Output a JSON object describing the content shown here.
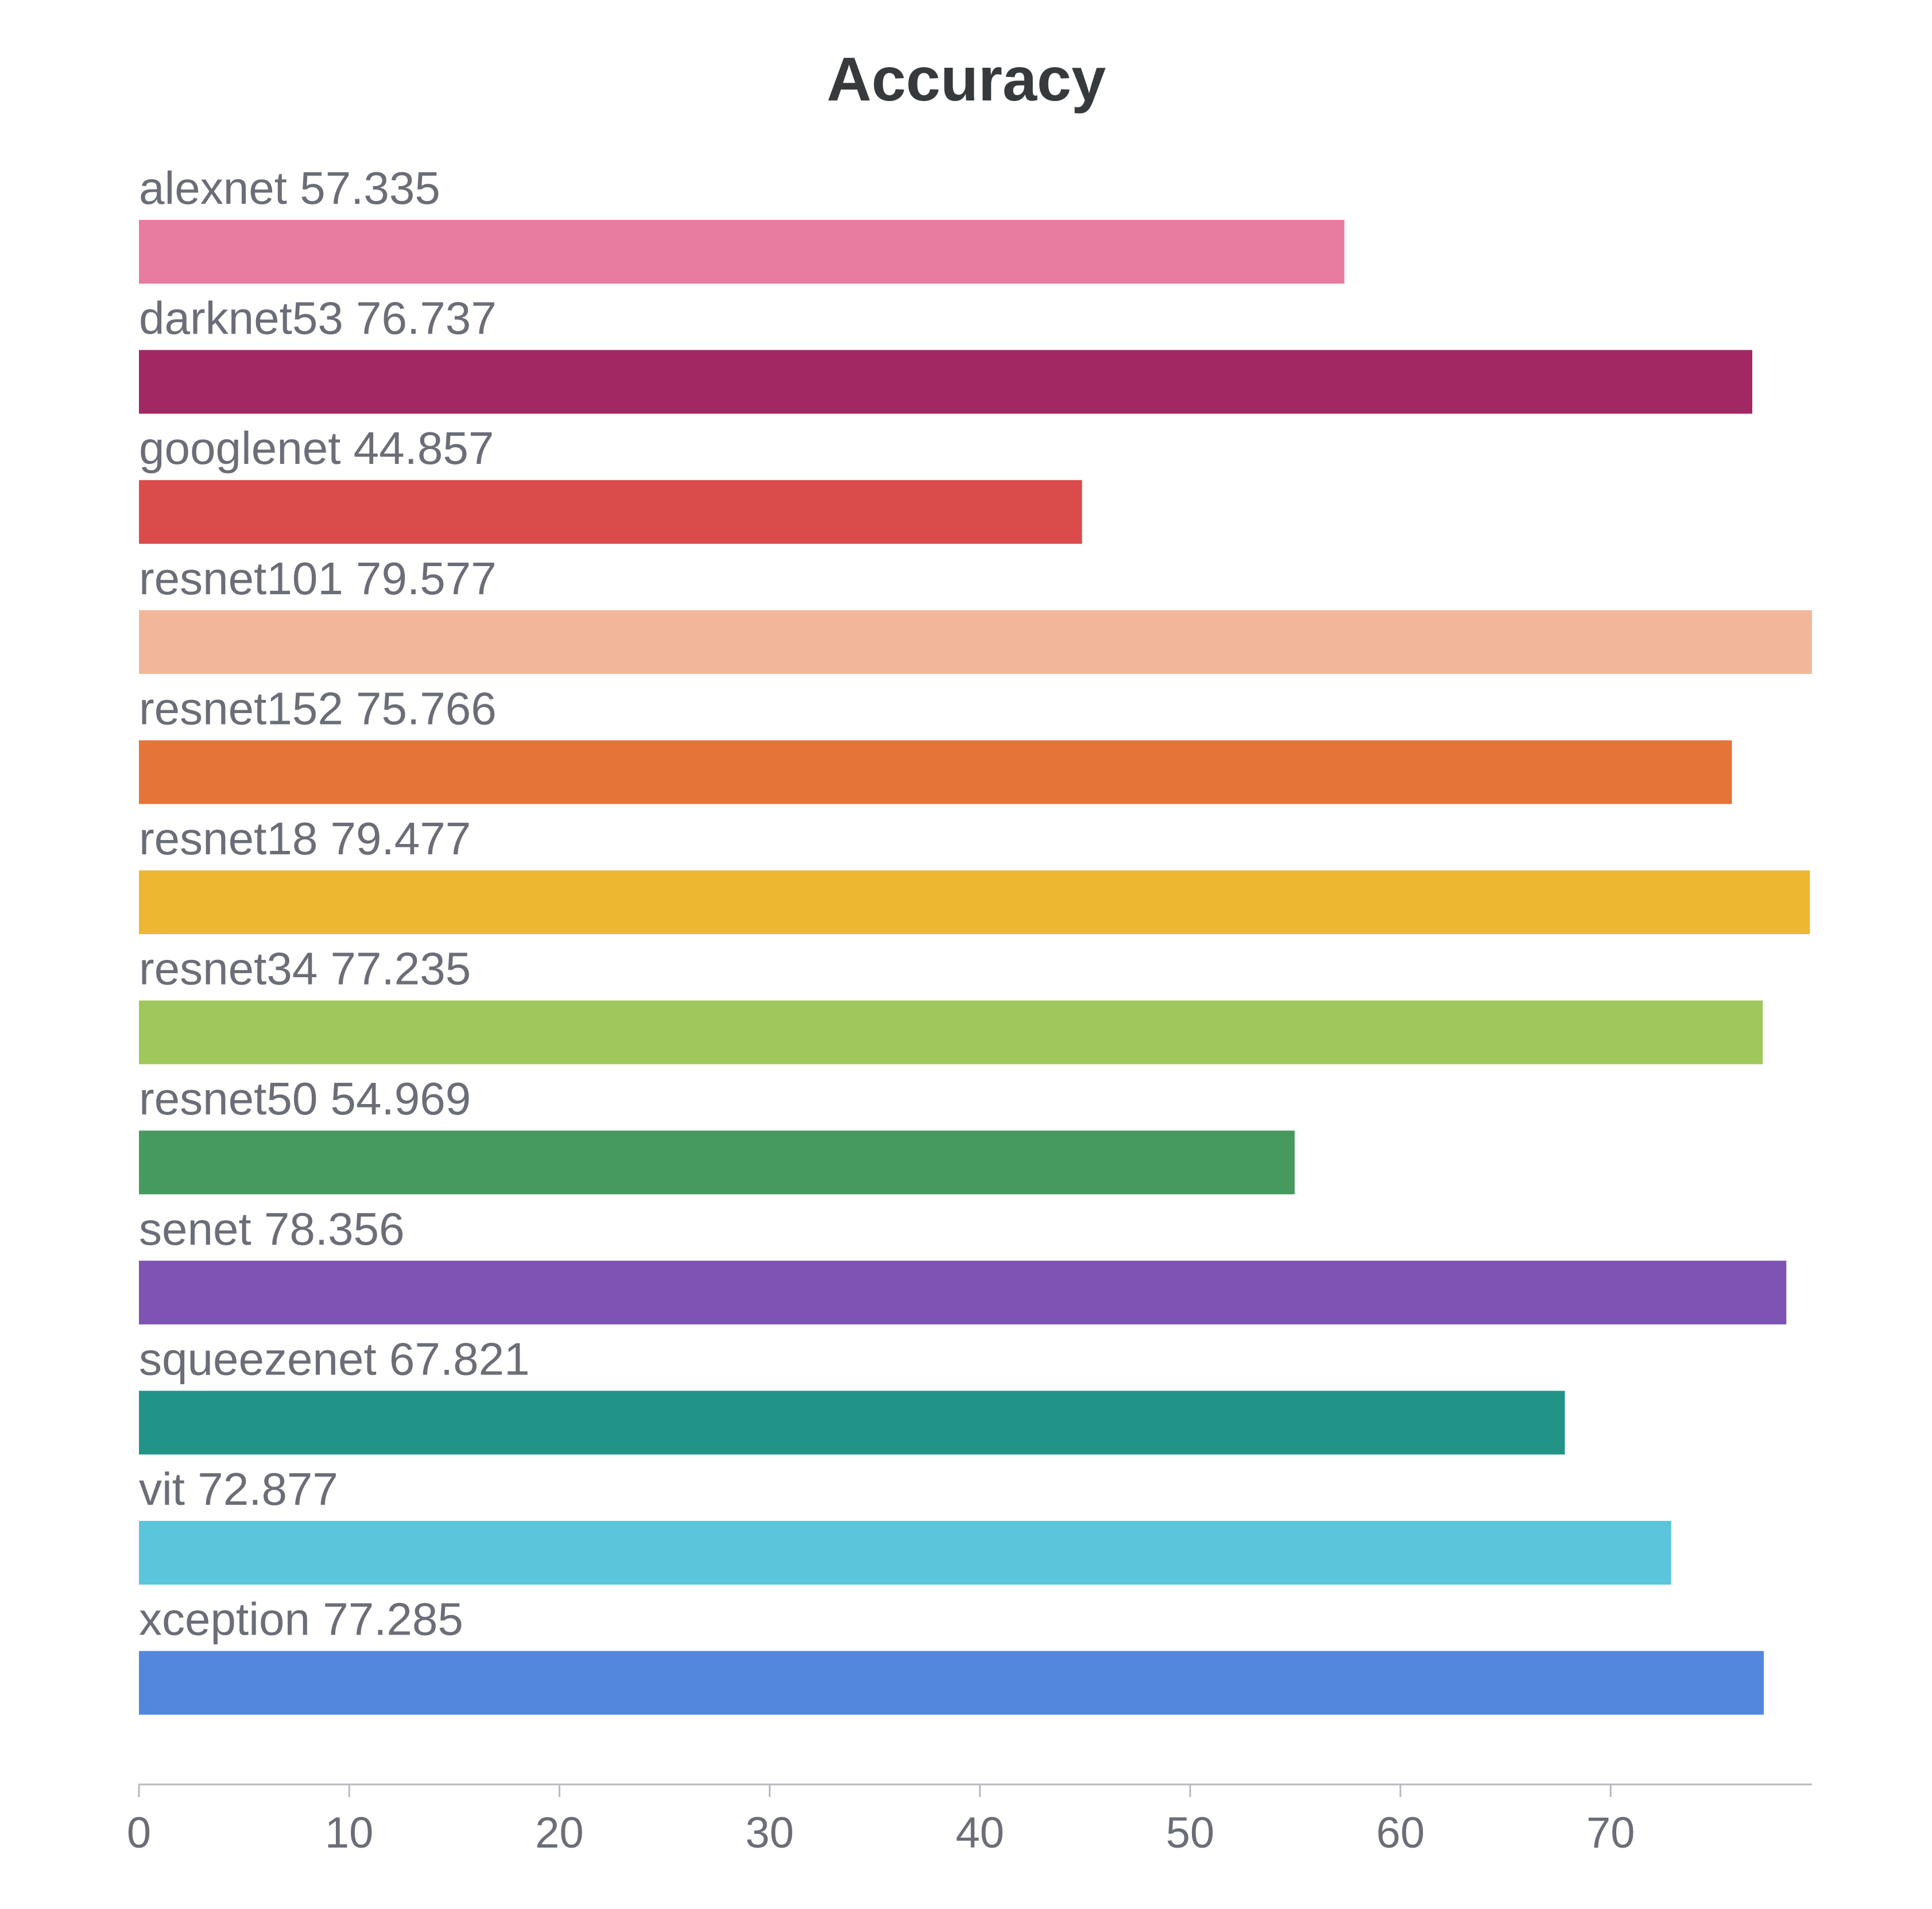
{
  "chart_data": {
    "type": "bar",
    "orientation": "horizontal",
    "title": "Accuracy",
    "xlabel": "",
    "ylabel": "",
    "categories": [
      "alexnet",
      "darknet53",
      "googlenet",
      "resnet101",
      "resnet152",
      "resnet18",
      "resnet34",
      "resnet50",
      "senet",
      "squeezenet",
      "vit",
      "xception"
    ],
    "values": [
      57.335,
      76.737,
      44.857,
      79.577,
      75.766,
      79.477,
      77.235,
      54.969,
      78.356,
      67.821,
      72.877,
      77.285
    ],
    "value_labels": [
      "57.335",
      "76.737",
      "44.857",
      "79.577",
      "75.766",
      "79.477",
      "77.235",
      "54.969",
      "78.356",
      "67.821",
      "72.877",
      "77.285"
    ],
    "colors": [
      "#e87ba0",
      "#a12863",
      "#da4c4c",
      "#f2b79b",
      "#e57439",
      "#edb732",
      "#a0c75c",
      "#479a5f",
      "#7d54b2",
      "#229487",
      "#5bc5db",
      "#5387dd"
    ],
    "xlim": [
      0,
      79.577
    ],
    "xticks": [
      0,
      10,
      20,
      30,
      40,
      50,
      60,
      70
    ],
    "grid": false,
    "legend": "none"
  }
}
